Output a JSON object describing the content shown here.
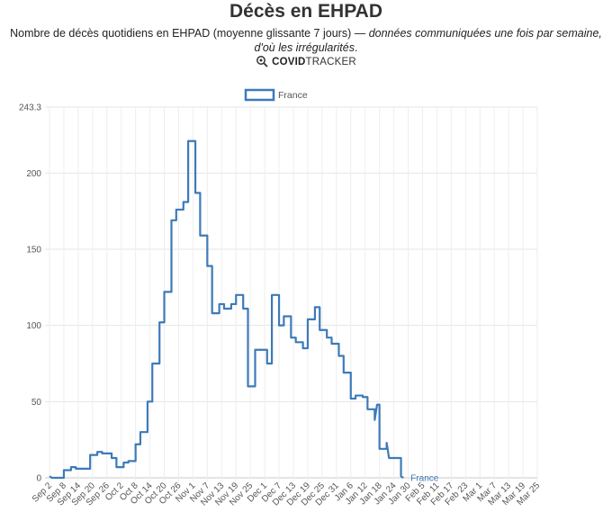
{
  "header": {
    "title": "Décès en EHPAD",
    "subtitle_main": "Nombre de décès quotidiens en EHPAD (moyenne glissante 7 jours) — ",
    "subtitle_italic": "données communiquées une fois par semaine, d'où les irrégularités",
    "subtitle_end": ".",
    "brand_bold": "COVID",
    "brand_rest": "TRACKER",
    "brand_icon": "magnifier-virus-icon"
  },
  "chart_data": {
    "type": "line",
    "title": "Décès en EHPAD",
    "xlabel": "",
    "ylabel": "",
    "ylim": [
      0,
      243.3
    ],
    "y_ticks": [
      "0",
      "50",
      "100",
      "150",
      "200",
      "243.3"
    ],
    "x_ticks": [
      "Sep 2",
      "Sep 8",
      "Sep 14",
      "Sep 20",
      "Sep 26",
      "Oct 2",
      "Oct 8",
      "Oct 14",
      "Oct 20",
      "Oct 26",
      "Nov 1",
      "Nov 7",
      "Nov 13",
      "Nov 19",
      "Nov 25",
      "Dec 1",
      "Dec 7",
      "Dec 13",
      "Dec 19",
      "Dec 25",
      "Dec 31",
      "Jan 6",
      "Jan 12",
      "Jan 18",
      "Jan 24",
      "Jan 30",
      "Feb 5",
      "Feb 11",
      "Feb 17",
      "Feb 23",
      "Mar 1",
      "Mar 7",
      "Mar 13",
      "Mar 19",
      "Mar 25"
    ],
    "grid": true,
    "legend": "top-center",
    "color": "#3d7ab8",
    "series": [
      {
        "name": "France",
        "end_label": "France",
        "points": [
          [
            0,
            1
          ],
          [
            1,
            0
          ],
          [
            6,
            0
          ],
          [
            6,
            5
          ],
          [
            9,
            5
          ],
          [
            9,
            7
          ],
          [
            11,
            7
          ],
          [
            11,
            6
          ],
          [
            17,
            6
          ],
          [
            17,
            15
          ],
          [
            20,
            15
          ],
          [
            20,
            17
          ],
          [
            22,
            17
          ],
          [
            22,
            16
          ],
          [
            26,
            16
          ],
          [
            26,
            13
          ],
          [
            28,
            13
          ],
          [
            28,
            7
          ],
          [
            31,
            7
          ],
          [
            31,
            10
          ],
          [
            33,
            10
          ],
          [
            33,
            11
          ],
          [
            36,
            11
          ],
          [
            36,
            22
          ],
          [
            38,
            22
          ],
          [
            38,
            30
          ],
          [
            41,
            30
          ],
          [
            41,
            50
          ],
          [
            43,
            50
          ],
          [
            43,
            75
          ],
          [
            46,
            75
          ],
          [
            46,
            102
          ],
          [
            48,
            102
          ],
          [
            48,
            122
          ],
          [
            51,
            122
          ],
          [
            51,
            169
          ],
          [
            53,
            169
          ],
          [
            53,
            176
          ],
          [
            56,
            176
          ],
          [
            56,
            181
          ],
          [
            58,
            181
          ],
          [
            58,
            221
          ],
          [
            61,
            221
          ],
          [
            61,
            187
          ],
          [
            63,
            187
          ],
          [
            63,
            159
          ],
          [
            66,
            159
          ],
          [
            66,
            139
          ],
          [
            68,
            139
          ],
          [
            68,
            108
          ],
          [
            71,
            108
          ],
          [
            71,
            114
          ],
          [
            73,
            114
          ],
          [
            73,
            111
          ],
          [
            76,
            111
          ],
          [
            76,
            114
          ],
          [
            78,
            114
          ],
          [
            78,
            120
          ],
          [
            81,
            120
          ],
          [
            81,
            111
          ],
          [
            83,
            111
          ],
          [
            83,
            60
          ],
          [
            86,
            60
          ],
          [
            86,
            84
          ],
          [
            91,
            84
          ],
          [
            91,
            75
          ],
          [
            93,
            75
          ],
          [
            93,
            120
          ],
          [
            96,
            120
          ],
          [
            96,
            100
          ],
          [
            98,
            100
          ],
          [
            98,
            106
          ],
          [
            101,
            106
          ],
          [
            101,
            92
          ],
          [
            103,
            92
          ],
          [
            103,
            89
          ],
          [
            106,
            89
          ],
          [
            106,
            85
          ],
          [
            108,
            85
          ],
          [
            108,
            104
          ],
          [
            111,
            104
          ],
          [
            111,
            112
          ],
          [
            113,
            112
          ],
          [
            113,
            97
          ],
          [
            116,
            97
          ],
          [
            116,
            92
          ],
          [
            118,
            92
          ],
          [
            118,
            88
          ],
          [
            121,
            88
          ],
          [
            121,
            80
          ],
          [
            123,
            80
          ],
          [
            123,
            69
          ],
          [
            126,
            69
          ],
          [
            126,
            52
          ],
          [
            128,
            52
          ],
          [
            128,
            54
          ],
          [
            131,
            54
          ],
          [
            131,
            53
          ],
          [
            133,
            53
          ],
          [
            133,
            45
          ],
          [
            136,
            45
          ],
          [
            136,
            38
          ],
          [
            137,
            48
          ],
          [
            138,
            48
          ],
          [
            138,
            19
          ],
          [
            141,
            19
          ],
          [
            141,
            23
          ],
          [
            142,
            13
          ],
          [
            147,
            13
          ],
          [
            147,
            1
          ],
          [
            148,
            0
          ]
        ]
      }
    ]
  }
}
